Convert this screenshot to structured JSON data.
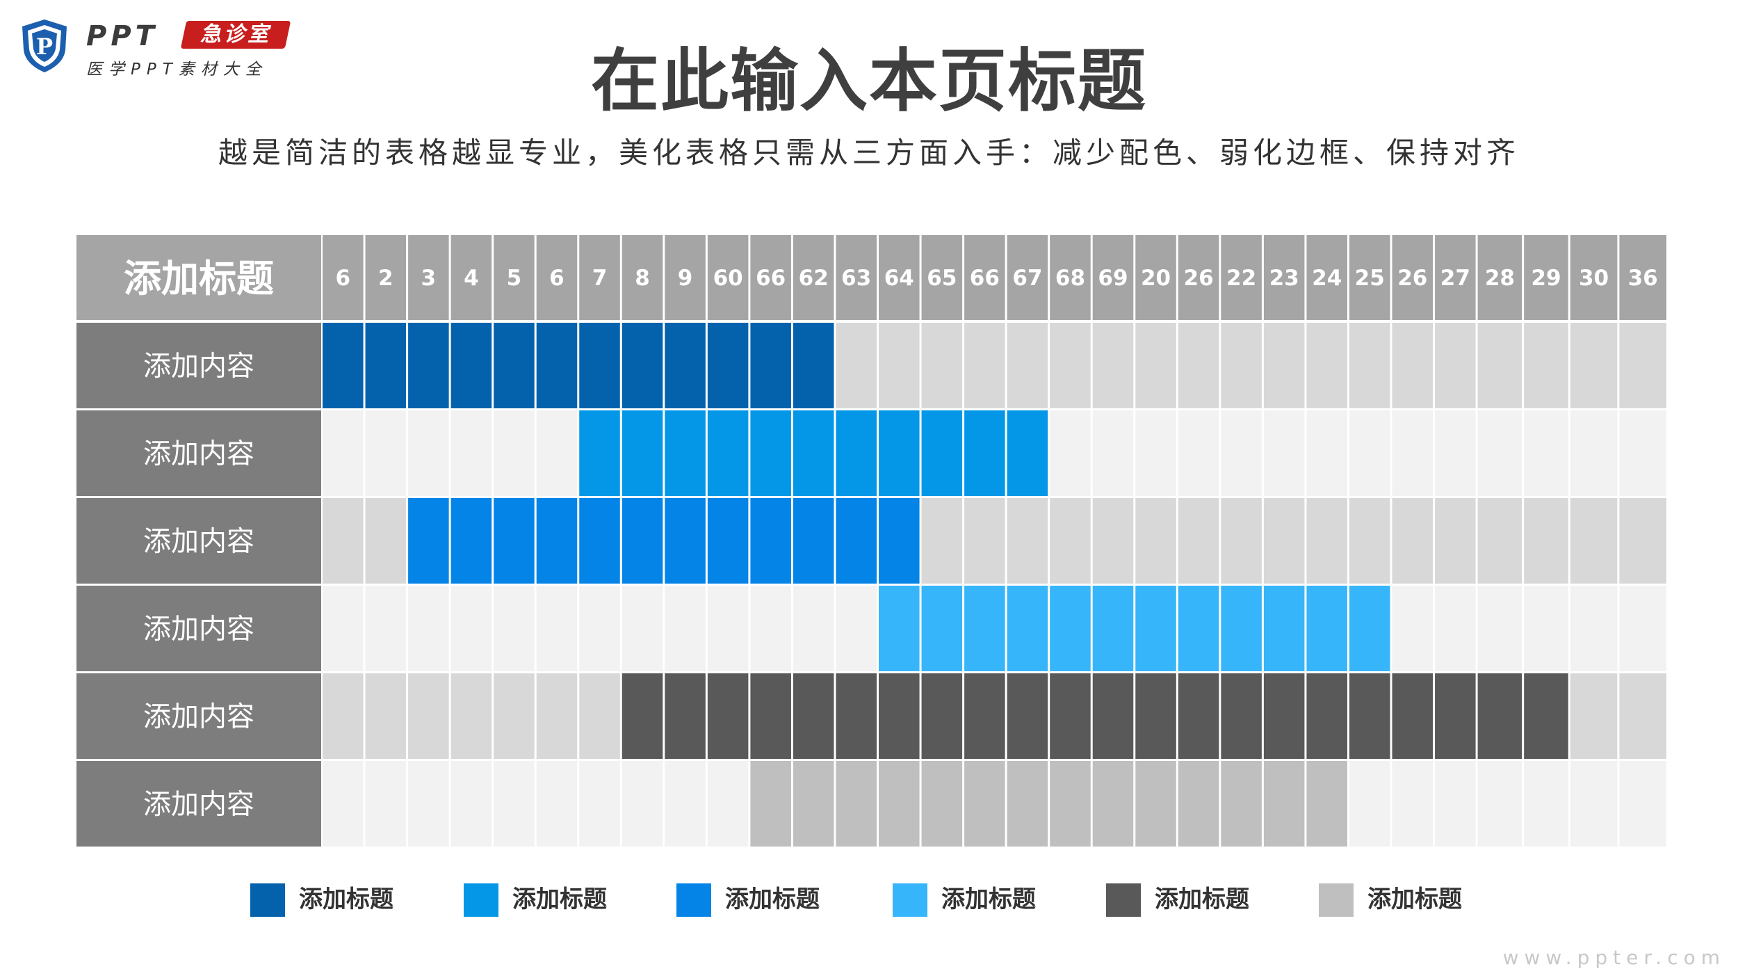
{
  "logo": {
    "brand": "PPT",
    "badge": "急诊室",
    "tagline": "医学PPT素材大全",
    "shield_letter": "P"
  },
  "header": {
    "title": "在此输入本页标题",
    "subtitle": "越是简洁的表格越显专业，美化表格只需从三方面入手：减少配色、弱化边框、保持对齐"
  },
  "colors": {
    "header_bg": "#a5a5a5",
    "row_label_bg": "#7d7d7d",
    "empty_odd": "#d8d8d8",
    "empty_even": "#f2f2f2",
    "grid_line": "#ffffff"
  },
  "chart_data": {
    "type": "table",
    "corner_label": "添加标题",
    "columns": [
      "6",
      "2",
      "3",
      "4",
      "5",
      "6",
      "7",
      "8",
      "9",
      "60",
      "66",
      "62",
      "63",
      "64",
      "65",
      "66",
      "67",
      "68",
      "69",
      "20",
      "26",
      "22",
      "23",
      "24",
      "25",
      "26",
      "27",
      "28",
      "29",
      "30",
      "36"
    ],
    "rows": [
      {
        "label": "添加内容",
        "bar_start_col": 0,
        "bar_end_col": 11,
        "color": "#0462ad"
      },
      {
        "label": "添加内容",
        "bar_start_col": 6,
        "bar_end_col": 16,
        "color": "#0497e8"
      },
      {
        "label": "添加内容",
        "bar_start_col": 2,
        "bar_end_col": 13,
        "color": "#0584e8"
      },
      {
        "label": "添加内容",
        "bar_start_col": 13,
        "bar_end_col": 24,
        "color": "#37b5fa"
      },
      {
        "label": "添加内容",
        "bar_start_col": 7,
        "bar_end_col": 28,
        "color": "#595959"
      },
      {
        "label": "添加内容",
        "bar_start_col": 10,
        "bar_end_col": 23,
        "color": "#bfbfbf"
      }
    ],
    "legend": [
      {
        "label": "添加标题",
        "color": "#0462ad"
      },
      {
        "label": "添加标题",
        "color": "#0497e8"
      },
      {
        "label": "添加标题",
        "color": "#0584e8"
      },
      {
        "label": "添加标题",
        "color": "#37b5fa"
      },
      {
        "label": "添加标题",
        "color": "#595959"
      },
      {
        "label": "添加标题",
        "color": "#bfbfbf"
      }
    ]
  },
  "watermark": "www.ppter.com"
}
